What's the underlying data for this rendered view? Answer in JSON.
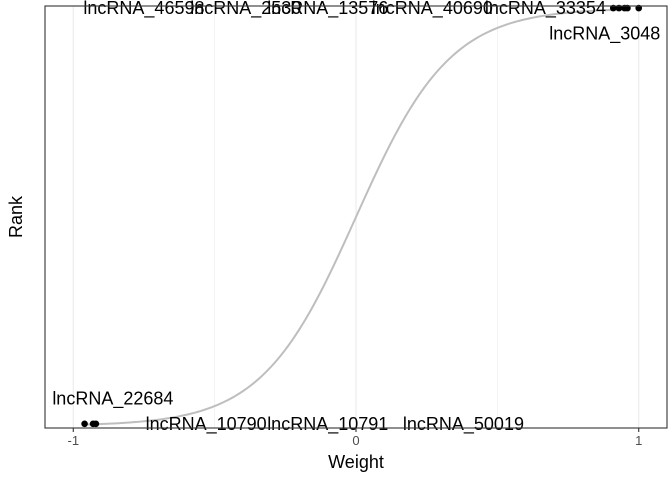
{
  "chart_data": {
    "type": "scatter",
    "title": "",
    "xlabel": "Weight",
    "ylabel": "Rank",
    "xlim": [
      -1.1,
      1.1
    ],
    "ylim": [
      0,
      1
    ],
    "x_ticks": [
      -1,
      0,
      1
    ],
    "x_tick_labels": [
      "-1",
      "0",
      "1"
    ],
    "y_ticks": [],
    "grid": true,
    "legend": "none",
    "curve_color": "#bebebe",
    "point_color": "#000000",
    "background_color": "#ffffff",
    "grid_color": "#ebebeb",
    "top_points": [
      {
        "x": 0.91,
        "y": 0.995
      },
      {
        "x": 0.93,
        "y": 0.995
      },
      {
        "x": 0.95,
        "y": 0.995
      },
      {
        "x": 0.96,
        "y": 0.995
      },
      {
        "x": 1.0,
        "y": 0.995
      }
    ],
    "bottom_points": [
      {
        "x": -0.96,
        "y": 0.01
      },
      {
        "x": -0.93,
        "y": 0.01
      },
      {
        "x": -0.92,
        "y": 0.01
      }
    ],
    "annotations": [
      {
        "text": "lncRNA_46598",
        "x": -0.75,
        "y": 0.995
      },
      {
        "text": "lncRNA_2530",
        "x": -0.39,
        "y": 0.995
      },
      {
        "text": "lncRNA_13576",
        "x": -0.1,
        "y": 0.995
      },
      {
        "text": "lncRNA_40690",
        "x": 0.27,
        "y": 0.995
      },
      {
        "text": "lncRNA_33354",
        "x": 0.67,
        "y": 0.995
      },
      {
        "text": "lncRNA_3048",
        "x": 0.88,
        "y": 0.935
      },
      {
        "text": "lncRNA_22684",
        "x": -0.86,
        "y": 0.07
      },
      {
        "text": "lncRNA_10790",
        "x": -0.53,
        "y": 0.01
      },
      {
        "text": "lncRNA_10791",
        "x": -0.1,
        "y": 0.01
      },
      {
        "text": "lncRNA_50019",
        "x": 0.38,
        "y": 0.01
      }
    ]
  }
}
